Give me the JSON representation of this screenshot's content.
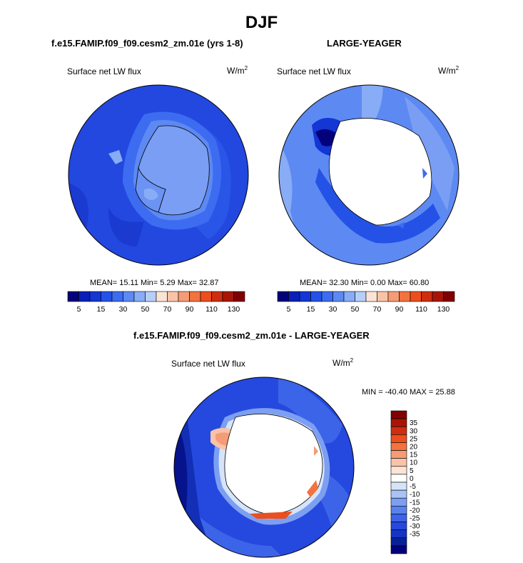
{
  "title": "DJF",
  "panels": [
    {
      "id": "model",
      "title": "f.e15.FAMIP.f09_f09.cesm2_zm.01e (yrs 1-8)",
      "variable": "Surface net LW flux",
      "units_base": "W/m",
      "units_exp": "2",
      "stats": "MEAN=  15.11  Min=    5.29  Max=  32.87",
      "colorbar": {
        "colors": [
          "#03027a",
          "#0a1fb5",
          "#1336d4",
          "#2452e6",
          "#3c6cf0",
          "#5d89f2",
          "#88acf5",
          "#b6cff8",
          "#fbe4d4",
          "#f8c3a7",
          "#f59c77",
          "#f2733f",
          "#ec4e1d",
          "#cd2e0f",
          "#a81507",
          "#800000"
        ],
        "tick_labels": [
          "5",
          "15",
          "30",
          "50",
          "70",
          "90",
          "110",
          "130"
        ]
      }
    },
    {
      "id": "obs",
      "title": "LARGE-YEAGER",
      "variable": "Surface net LW flux",
      "units_base": "W/m",
      "units_exp": "2",
      "stats": "MEAN=  32.30  Min=    0.00  Max=  60.80",
      "colorbar": {
        "colors": [
          "#03027a",
          "#0a1fb5",
          "#1336d4",
          "#2452e6",
          "#3c6cf0",
          "#5d89f2",
          "#88acf5",
          "#b6cff8",
          "#fbe4d4",
          "#f8c3a7",
          "#f59c77",
          "#f2733f",
          "#ec4e1d",
          "#cd2e0f",
          "#a81507",
          "#800000"
        ],
        "tick_labels": [
          "5",
          "15",
          "30",
          "50",
          "70",
          "90",
          "110",
          "130"
        ]
      }
    },
    {
      "id": "diff",
      "title": "f.e15.FAMIP.f09_f09.cesm2_zm.01e - LARGE-YEAGER",
      "variable": "Surface net LW flux",
      "units_base": "W/m",
      "units_exp": "2",
      "stats": "MIN = -40.40 MAX =  25.88",
      "colorbar": {
        "colors": [
          "#800000",
          "#a81507",
          "#cd2e0f",
          "#ec4e1d",
          "#f2733f",
          "#f59c77",
          "#f8c3a7",
          "#fbe4d4",
          "#ffffff",
          "#d6e4fa",
          "#a9c3f6",
          "#7c9ff2",
          "#5a82ee",
          "#3c64e8",
          "#2548de",
          "#1533c4",
          "#08209a",
          "#03027a"
        ],
        "tick_labels": [
          "35",
          "30",
          "25",
          "20",
          "15",
          "10",
          "5",
          "0",
          "-5",
          "-10",
          "-15",
          "-20",
          "-25",
          "-30",
          "-35"
        ]
      }
    }
  ]
}
